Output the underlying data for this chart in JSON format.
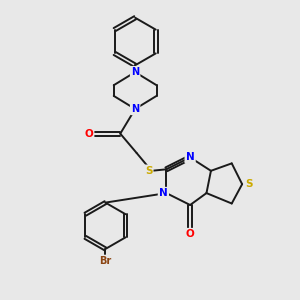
{
  "bg_color": "#e8e8e8",
  "bond_color": "#1a1a1a",
  "atom_colors": {
    "N": "#0000ff",
    "O": "#ff0000",
    "S": "#ccaa00",
    "Br": "#8B4513",
    "C": "#1a1a1a"
  }
}
